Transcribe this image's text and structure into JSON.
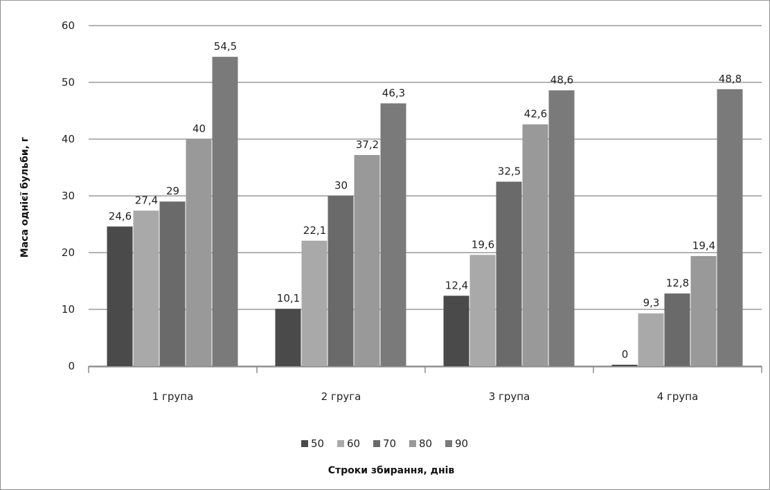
{
  "chart_data": {
    "type": "bar",
    "categories": [
      "1 група",
      "2 груга",
      "3 група",
      "4 група"
    ],
    "series": [
      {
        "name": "50",
        "values": [
          24.6,
          10.1,
          12.4,
          0
        ],
        "color": "#4a4a4a"
      },
      {
        "name": "60",
        "values": [
          27.4,
          22.1,
          19.6,
          9.3
        ],
        "color": "#a9a9a9"
      },
      {
        "name": "70",
        "values": [
          29,
          30,
          32.5,
          12.8
        ],
        "color": "#6a6a6a"
      },
      {
        "name": "80",
        "values": [
          40,
          37.2,
          42.6,
          19.4
        ],
        "color": "#999999"
      },
      {
        "name": "90",
        "values": [
          54.5,
          46.3,
          48.6,
          48.8
        ],
        "color": "#7a7a7a"
      }
    ],
    "data_labels": [
      [
        "24,6",
        "10,1",
        "12,4",
        "0"
      ],
      [
        "27,4",
        "22,1",
        "19,6",
        "9,3"
      ],
      [
        "29",
        "30",
        "32,5",
        "12,8"
      ],
      [
        "40",
        "37,2",
        "42,6",
        "19,4"
      ],
      [
        "54,5",
        "46,3",
        "48,6",
        "48,8"
      ]
    ],
    "yticks": [
      "0",
      "10",
      "20",
      "30",
      "40",
      "50",
      "60"
    ],
    "ylim": [
      0,
      60
    ],
    "ylabel": "Маса однієї бульби, г",
    "xlabel": "Строки збирання, днів",
    "legend_position": "bottom",
    "grid": true
  }
}
